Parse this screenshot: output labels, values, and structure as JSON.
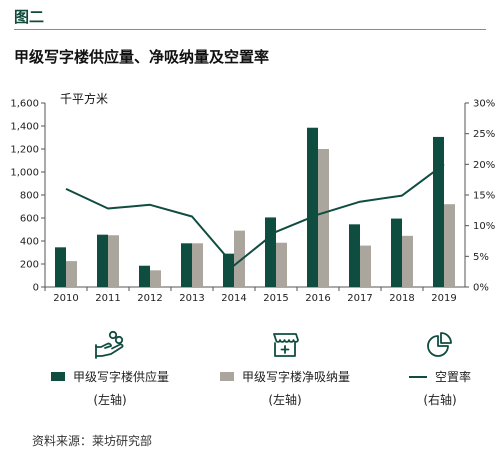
{
  "figure_tag": "图二",
  "title": "甲级写字楼供应量、净吸纳量及空置率",
  "source": "资料来源：莱坊研究部",
  "chart_data": {
    "type": "bar",
    "unit_label": "千平方米",
    "categories": [
      "2010",
      "2011",
      "2012",
      "2013",
      "2014",
      "2015",
      "2016",
      "2017",
      "2018",
      "2019"
    ],
    "series": [
      {
        "name": "甲级写字楼供应量",
        "axis": "left",
        "type": "bar",
        "color": "#0f4d40",
        "values": [
          345,
          455,
          185,
          380,
          290,
          605,
          1385,
          545,
          595,
          1305
        ]
      },
      {
        "name": "甲级写字楼净吸纳量",
        "axis": "left",
        "type": "bar",
        "color": "#aaa59d",
        "values": [
          225,
          450,
          145,
          380,
          490,
          385,
          1200,
          360,
          445,
          720
        ]
      },
      {
        "name": "空置率",
        "axis": "right",
        "type": "line",
        "color": "#0f4d40",
        "values": [
          16.0,
          12.8,
          13.4,
          11.5,
          3.5,
          9.0,
          11.8,
          13.9,
          14.9,
          20.0
        ]
      }
    ],
    "yleft": {
      "min": 0,
      "max": 1600,
      "ticks": [
        "0",
        "200",
        "400",
        "600",
        "800",
        "1,000",
        "1,200",
        "1,400",
        "1,600"
      ]
    },
    "yright": {
      "min": 0,
      "max": 30,
      "ticks": [
        "0%",
        "5%",
        "10%",
        "15%",
        "20%",
        "25%",
        "30%"
      ]
    },
    "grid": false,
    "legend_position": "bottom"
  },
  "legend": [
    {
      "label": "甲级写字楼供应量",
      "sub": "(左轴)",
      "icon": "hand-coins-icon",
      "kind": "bar",
      "color": "#0f4d40"
    },
    {
      "label": "甲级写字楼净吸纳量",
      "sub": "(左轴)",
      "icon": "storefront-plus-icon",
      "kind": "bar",
      "color": "#aaa59d"
    },
    {
      "label": "空置率",
      "sub": "(右轴)",
      "icon": "pie-chart-icon",
      "kind": "line",
      "color": "#0f4d40"
    }
  ]
}
